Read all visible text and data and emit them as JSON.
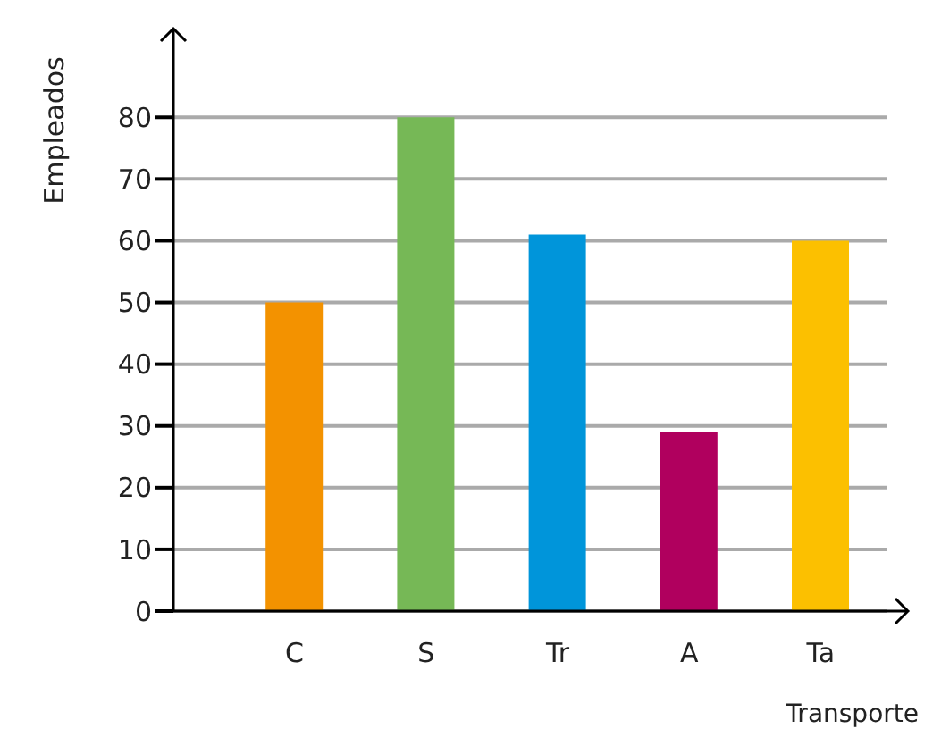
{
  "chart_data": {
    "type": "bar",
    "xlabel": "Transporte",
    "ylabel": "Empleados",
    "categories": [
      "C",
      "S",
      "Tr",
      "A",
      "Ta"
    ],
    "values": [
      50,
      80,
      61,
      29,
      60
    ],
    "colors": [
      "#f39200",
      "#76b856",
      "#0095da",
      "#b0005e",
      "#fcc000"
    ],
    "ylim": [
      0,
      88
    ],
    "yticks": [
      0,
      10,
      20,
      30,
      40,
      50,
      60,
      70,
      80
    ],
    "grid": "y"
  }
}
